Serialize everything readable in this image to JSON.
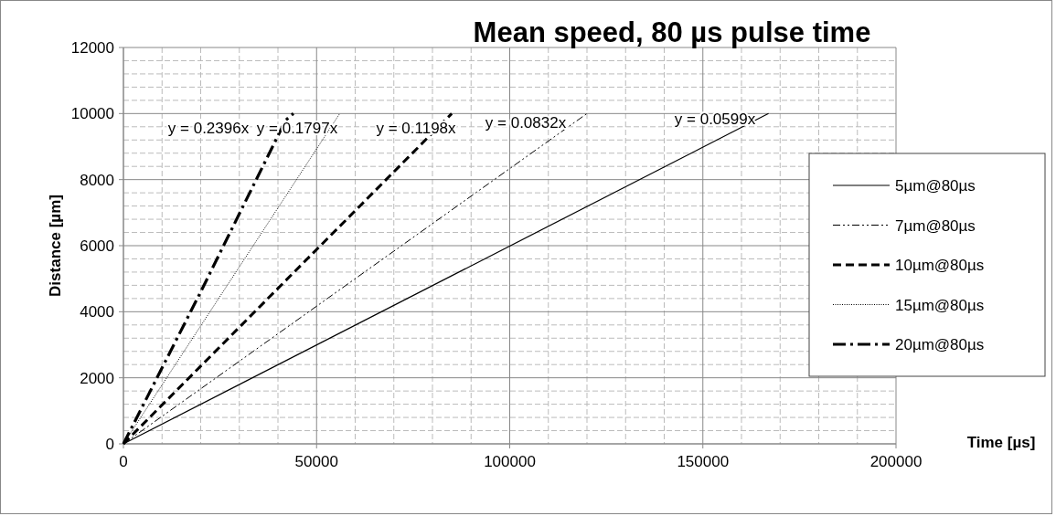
{
  "chart_data": {
    "type": "line",
    "title": "Mean speed, 80 µs pulse time",
    "xlabel": "Time [µs]",
    "ylabel": "Distance  [µm]",
    "xlim": [
      0,
      200000
    ],
    "xticks": [
      0,
      50000,
      100000,
      150000,
      200000
    ],
    "ylim": [
      0,
      12000
    ],
    "yticks": [
      0,
      2000,
      4000,
      6000,
      8000,
      10000,
      12000
    ],
    "grid": true,
    "legend": "right",
    "marker": "none",
    "series": [
      {
        "name": "5µm@80µs",
        "color": "#000000",
        "line_style": "solid",
        "x": [
          0,
          167000
        ],
        "values": [
          0,
          10000
        ]
      },
      {
        "name": "7µm@80µs",
        "color": "#000000",
        "line_style": "dashdotdot",
        "x": [
          0,
          120000
        ],
        "values": [
          0,
          10000
        ]
      },
      {
        "name": "10µm@80µs",
        "color": "#000000",
        "line_style": "dashed",
        "x": [
          0,
          85000
        ],
        "values": [
          0,
          10000
        ]
      },
      {
        "name": "15µm@80µs",
        "color": "#000000",
        "line_style": "dotted",
        "x": [
          0,
          56000
        ],
        "values": [
          0,
          10000
        ]
      },
      {
        "name": "20µm@80µs",
        "color": "#000000",
        "line_style": "dashdot",
        "x": [
          0,
          20000,
          42000,
          44000
        ],
        "values": [
          0,
          4600,
          9800,
          10000
        ]
      }
    ],
    "annotations": [
      "y = 0.2396x",
      "y = 0.1797x",
      "y = 0.1198x",
      "y = 0.0832x",
      "y = 0.0599x"
    ]
  }
}
